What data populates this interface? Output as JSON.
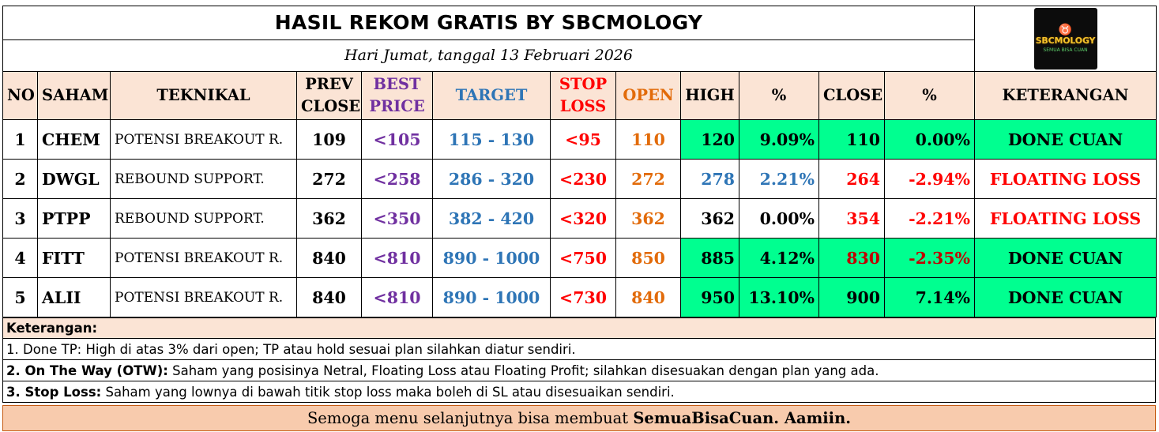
{
  "title": "HASIL REKOM GRATIS BY SBCMOLOGY",
  "date": "Hari Jumat, tanggal 13 Februari 2026",
  "logo": {
    "text": "SBCMOLOGY",
    "sub": "SEMUA BISA CUAN",
    "icon": "bull-icon"
  },
  "headers": {
    "no": "NO",
    "saham": "SAHAM",
    "teknikal": "TEKNIKAL",
    "prev_close_1": "PREV",
    "prev_close_2": "CLOSE",
    "best_price_1": "BEST",
    "best_price_2": "PRICE",
    "target": "TARGET",
    "stop_loss_1": "STOP",
    "stop_loss_2": "LOSS",
    "open": "OPEN",
    "high": "HIGH",
    "pct_high": "%",
    "close": "CLOSE",
    "pct_close": "%",
    "keterangan": "KETERANGAN"
  },
  "rows": [
    {
      "no": "1",
      "saham": "CHEM",
      "teknikal": "POTENSI BREAKOUT R.",
      "prev_close": "109",
      "best_price": "<105",
      "target": "115 - 130",
      "stop_loss": "<95",
      "open": "110",
      "high": "120",
      "pct_high": "9.09%",
      "close": "110",
      "pct_close": "0.00%",
      "keterangan": "DONE CUAN"
    },
    {
      "no": "2",
      "saham": "DWGL",
      "teknikal": "REBOUND SUPPORT.",
      "prev_close": "272",
      "best_price": "<258",
      "target": "286 - 320",
      "stop_loss": "<230",
      "open": "272",
      "high": "278",
      "pct_high": "2.21%",
      "close": "264",
      "pct_close": "-2.94%",
      "keterangan": "FLOATING LOSS"
    },
    {
      "no": "3",
      "saham": "PTPP",
      "teknikal": "REBOUND SUPPORT.",
      "prev_close": "362",
      "best_price": "<350",
      "target": "382 - 420",
      "stop_loss": "<320",
      "open": "362",
      "high": "362",
      "pct_high": "0.00%",
      "close": "354",
      "pct_close": "-2.21%",
      "keterangan": "FLOATING LOSS"
    },
    {
      "no": "4",
      "saham": "FITT",
      "teknikal": "POTENSI BREAKOUT R.",
      "prev_close": "840",
      "best_price": "<810",
      "target": "890 - 1000",
      "stop_loss": "<750",
      "open": "850",
      "high": "885",
      "pct_high": "4.12%",
      "close": "830",
      "pct_close": "-2.35%",
      "keterangan": "DONE CUAN"
    },
    {
      "no": "5",
      "saham": "ALII",
      "teknikal": "POTENSI BREAKOUT R.",
      "prev_close": "840",
      "best_price": "<810",
      "target": "890 - 1000",
      "stop_loss": "<730",
      "open": "840",
      "high": "950",
      "pct_high": "13.10%",
      "close": "900",
      "pct_close": "7.14%",
      "keterangan": "DONE CUAN"
    }
  ],
  "notes": {
    "heading": "Keterangan:",
    "line1": "1. Done TP: High di atas 3% dari open; TP atau hold sesuai plan silahkan diatur sendiri.",
    "line2_bold": "2. On The Way (OTW):",
    "line2_rest": " Saham yang posisinya Netral, Floating Loss atau Floating Profit; silahkan disesuakan dengan plan yang ada.",
    "line3_bold": "3. Stop Loss:",
    "line3_rest": " Saham yang lownya di bawah titik stop loss maka boleh di SL atau disesuaikan sendiri."
  },
  "footer": {
    "text": "Semoga menu selanjutnya bisa membuat ",
    "bold": "SemuaBisaCuan. Aamiin."
  },
  "colors": {
    "header_bg": "#fbe4d5",
    "done_green": "#00ff90",
    "floating_loss_red": "#ff0000",
    "footer_bg": "#f8cbad"
  }
}
